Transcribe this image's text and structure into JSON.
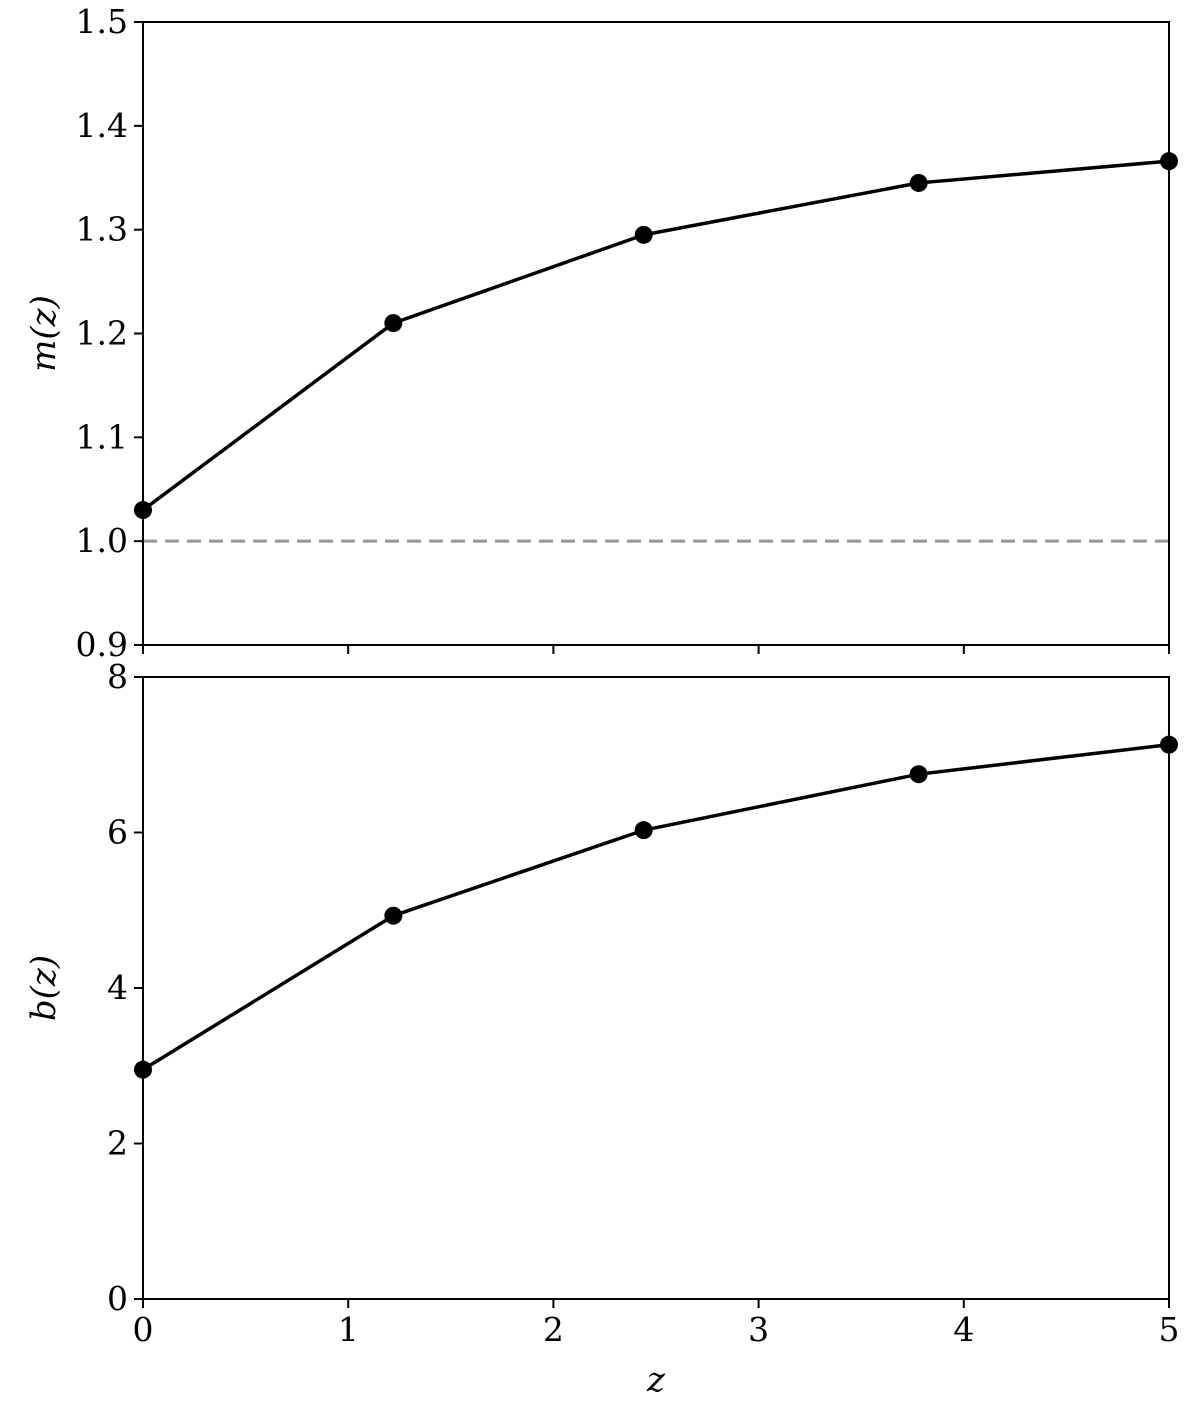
{
  "chart_data": [
    {
      "type": "line",
      "xlabel": "",
      "ylabel": "m(z)",
      "x": [
        0,
        1.22,
        2.44,
        3.78,
        5.0
      ],
      "series": [
        {
          "values": [
            1.03,
            1.21,
            1.295,
            1.345,
            1.366
          ],
          "color": "#000000",
          "marker": "circle"
        }
      ],
      "reference_lines": [
        {
          "y": 1.0,
          "style": "dashed",
          "color": "#999999"
        }
      ],
      "xlim": [
        0,
        5
      ],
      "ylim": [
        0.9,
        1.5
      ],
      "xticks": [
        0,
        1,
        2,
        3,
        4,
        5
      ],
      "xtick_labels": [
        "",
        "",
        "",
        "",
        "",
        ""
      ],
      "yticks": [
        0.9,
        1.0,
        1.1,
        1.2,
        1.3,
        1.4,
        1.5
      ],
      "ytick_labels": [
        "0.9",
        "1.0",
        "1.1",
        "1.2",
        "1.3",
        "1.4",
        "1.5"
      ],
      "grid": false
    },
    {
      "type": "line",
      "xlabel": "z",
      "ylabel": "b(z)",
      "x": [
        0,
        1.22,
        2.44,
        3.78,
        5.0
      ],
      "series": [
        {
          "values": [
            2.95,
            4.93,
            6.03,
            6.75,
            7.13
          ],
          "color": "#000000",
          "marker": "circle"
        }
      ],
      "xlim": [
        0,
        5
      ],
      "ylim": [
        0,
        8
      ],
      "xticks": [
        0,
        1,
        2,
        3,
        4,
        5
      ],
      "xtick_labels": [
        "0",
        "1",
        "2",
        "3",
        "4",
        "5"
      ],
      "yticks": [
        0,
        2,
        4,
        6,
        8
      ],
      "ytick_labels": [
        "0",
        "2",
        "4",
        "6",
        "8"
      ],
      "grid": false
    }
  ]
}
